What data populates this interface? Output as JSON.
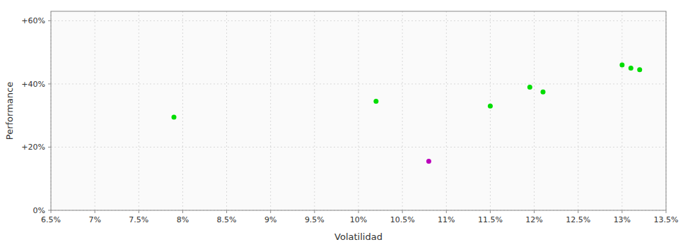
{
  "chart_data": {
    "type": "scatter",
    "xlabel": "Volatilidad",
    "ylabel": "Performance",
    "xlim": [
      0.065,
      0.135
    ],
    "ylim": [
      0.0,
      0.63
    ],
    "xticks": [
      {
        "value": 0.065,
        "label": "6.5%"
      },
      {
        "value": 0.07,
        "label": "7%"
      },
      {
        "value": 0.075,
        "label": "7.5%"
      },
      {
        "value": 0.08,
        "label": "8%"
      },
      {
        "value": 0.085,
        "label": "8.5%"
      },
      {
        "value": 0.09,
        "label": "9%"
      },
      {
        "value": 0.095,
        "label": "9.5%"
      },
      {
        "value": 0.1,
        "label": "10%"
      },
      {
        "value": 0.105,
        "label": "10.5%"
      },
      {
        "value": 0.11,
        "label": "11%"
      },
      {
        "value": 0.115,
        "label": "11.5%"
      },
      {
        "value": 0.12,
        "label": "12%"
      },
      {
        "value": 0.125,
        "label": "12.5%"
      },
      {
        "value": 0.13,
        "label": "13%"
      },
      {
        "value": 0.135,
        "label": "13.5%"
      }
    ],
    "yticks": [
      {
        "value": 0.0,
        "label": "0%"
      },
      {
        "value": 0.2,
        "label": "+20%"
      },
      {
        "value": 0.4,
        "label": "+40%"
      },
      {
        "value": 0.6,
        "label": "+60%"
      }
    ],
    "grid": true,
    "series": [
      {
        "color": "#00dd00",
        "x": [
          0.079,
          0.102,
          0.115,
          0.1195,
          0.121,
          0.13,
          0.131,
          0.132
        ],
        "values": [
          0.295,
          0.345,
          0.33,
          0.39,
          0.375,
          0.46,
          0.45,
          0.445
        ]
      },
      {
        "color": "#bb00bb",
        "x": [
          0.108
        ],
        "values": [
          0.155
        ]
      }
    ]
  }
}
